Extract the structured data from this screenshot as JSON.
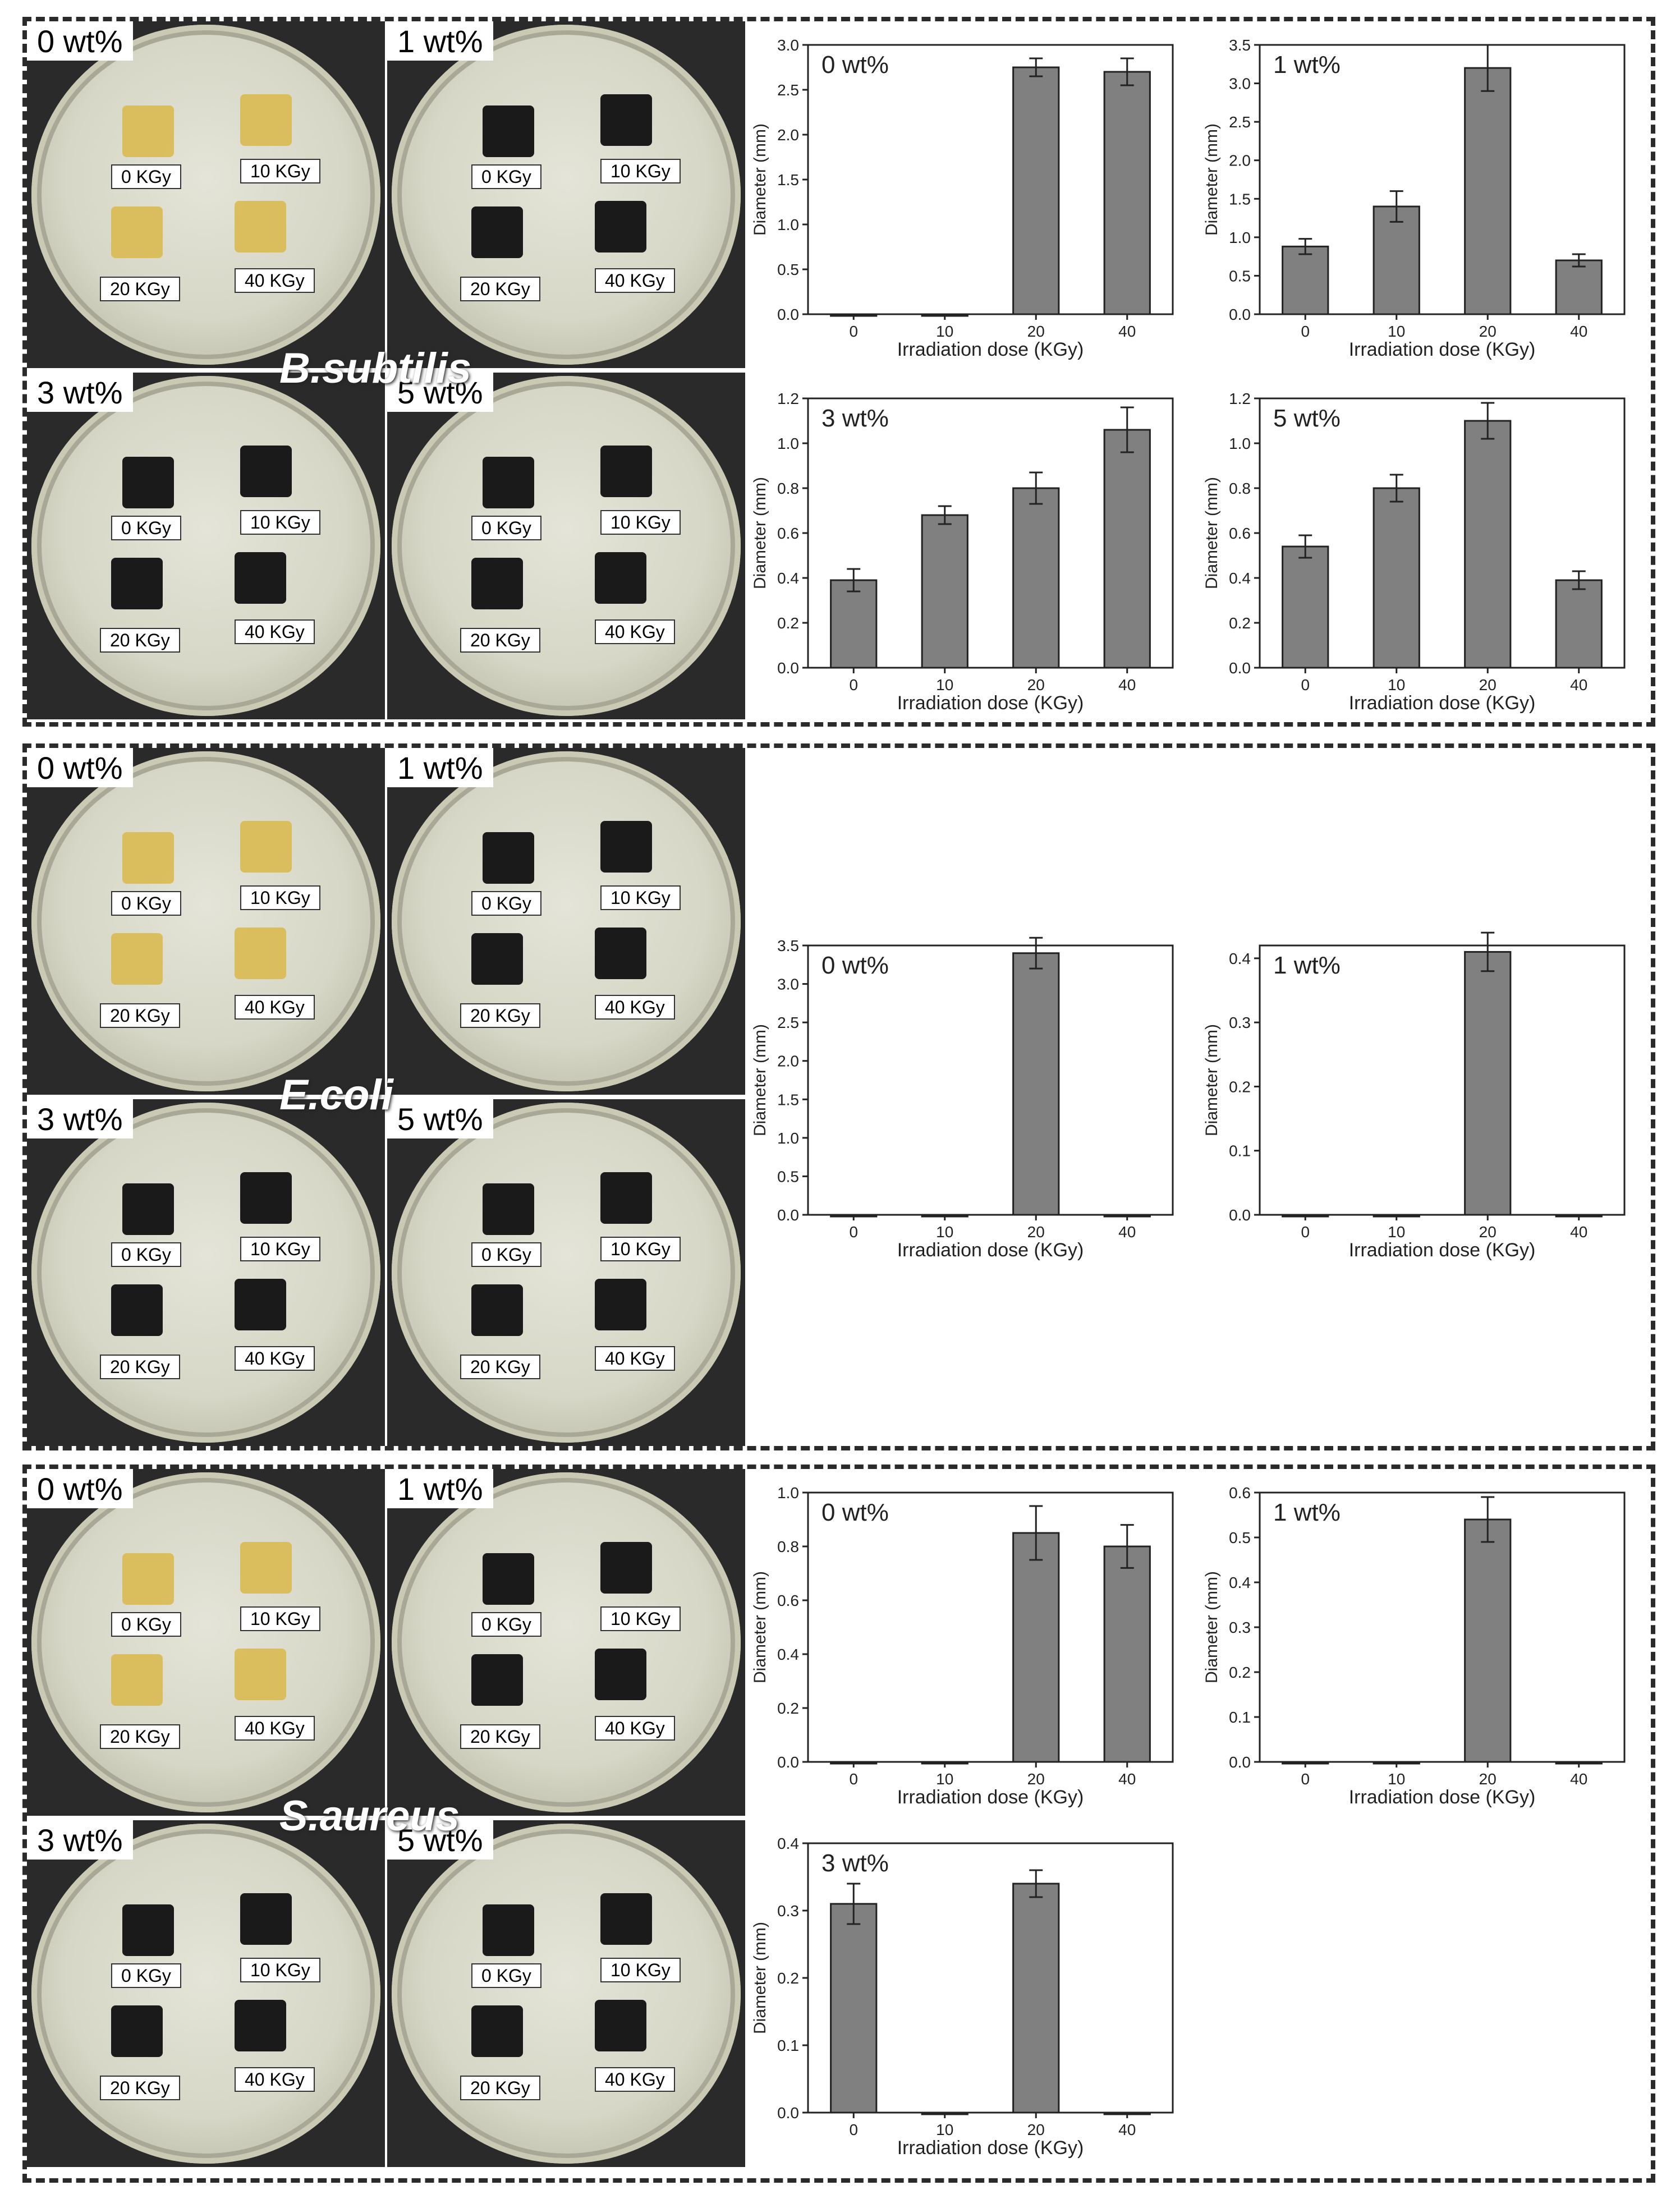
{
  "sections": [
    {
      "species": "B.subtilis",
      "photos": [
        {
          "label": "0 wt%",
          "tint": "light",
          "doses": [
            "0 KGy",
            "10 KGy",
            "20 KGy",
            "40 KGy"
          ]
        },
        {
          "label": "1 wt%",
          "tint": "dark",
          "doses": [
            "0 KGy",
            "10 KGy",
            "20 KGy",
            "40 KGy"
          ]
        },
        {
          "label": "3 wt%",
          "tint": "dark",
          "doses": [
            "0 KGy",
            "10 KGy",
            "20 KGy",
            "40 KGy"
          ]
        },
        {
          "label": "5 wt%",
          "tint": "dark",
          "doses": [
            "0 KGy",
            "10 KGy",
            "20 KGy",
            "40 KGy"
          ]
        }
      ]
    },
    {
      "species": "E.coli",
      "photos": [
        {
          "label": "0 wt%",
          "tint": "light",
          "doses": [
            "0 KGy",
            "10 KGy",
            "20 KGy",
            "40 KGy"
          ]
        },
        {
          "label": "1 wt%",
          "tint": "dark",
          "doses": [
            "0 KGy",
            "10 KGy",
            "20 KGy",
            "40 KGy"
          ]
        },
        {
          "label": "3 wt%",
          "tint": "dark",
          "doses": [
            "0 KGy",
            "10 KGy",
            "20 KGy",
            "40 KGy"
          ]
        },
        {
          "label": "5 wt%",
          "tint": "dark",
          "doses": [
            "0 KGy",
            "10 KGy",
            "20 KGy",
            "40 KGy"
          ]
        }
      ]
    },
    {
      "species": "S.aureus",
      "photos": [
        {
          "label": "0 wt%",
          "tint": "light",
          "doses": [
            "0 KGy",
            "10 KGy",
            "20 KGy",
            "40 KGy"
          ]
        },
        {
          "label": "1 wt%",
          "tint": "dark",
          "doses": [
            "0 KGy",
            "10 KGy",
            "20 KGy",
            "40 KGy"
          ]
        },
        {
          "label": "3 wt%",
          "tint": "dark",
          "doses": [
            "0 KGy",
            "10 KGy",
            "20 KGy",
            "40 KGy"
          ]
        },
        {
          "label": "5 wt%",
          "tint": "dark",
          "doses": [
            "0 KGy",
            "10 KGy",
            "20 KGy",
            "40 KGy"
          ]
        }
      ]
    }
  ],
  "colors": {
    "bar": "#808080",
    "light_sample": "#d9b84a",
    "dark_sample": "#1a1a1a"
  },
  "chart_data": [
    {
      "type": "bar",
      "title": "0 wt%",
      "categories": [
        "0",
        "10",
        "20",
        "40"
      ],
      "values": [
        0,
        0,
        2.75,
        2.7
      ],
      "errors": [
        0,
        0,
        0.1,
        0.15
      ],
      "xlabel": "Irradiation dose (KGy)",
      "ylabel": "Diameter (mm)",
      "ylim": [
        0,
        3.0
      ],
      "yticks": [
        "0.0",
        "0.5",
        "1.0",
        "1.5",
        "2.0",
        "2.5",
        "3.0"
      ]
    },
    {
      "type": "bar",
      "title": "1 wt%",
      "categories": [
        "0",
        "10",
        "20",
        "40"
      ],
      "values": [
        0.88,
        1.4,
        3.2,
        0.7
      ],
      "errors": [
        0.1,
        0.2,
        0.3,
        0.08
      ],
      "xlabel": "Irradiation dose (KGy)",
      "ylabel": "Diameter (mm)",
      "ylim": [
        0,
        3.5
      ],
      "yticks": [
        "0.0",
        "0.5",
        "1.0",
        "1.5",
        "2.0",
        "2.5",
        "3.0",
        "3.5"
      ]
    },
    {
      "type": "bar",
      "title": "3 wt%",
      "categories": [
        "0",
        "10",
        "20",
        "40"
      ],
      "values": [
        0.39,
        0.68,
        0.8,
        1.06
      ],
      "errors": [
        0.05,
        0.04,
        0.07,
        0.1
      ],
      "xlabel": "Irradiation dose (KGy)",
      "ylabel": "Diameter (mm)",
      "ylim": [
        0,
        1.2
      ],
      "yticks": [
        "0.0",
        "0.2",
        "0.4",
        "0.6",
        "0.8",
        "1.0",
        "1.2"
      ]
    },
    {
      "type": "bar",
      "title": "5 wt%",
      "categories": [
        "0",
        "10",
        "20",
        "40"
      ],
      "values": [
        0.54,
        0.8,
        1.1,
        0.39
      ],
      "errors": [
        0.05,
        0.06,
        0.08,
        0.04
      ],
      "xlabel": "Irradiation dose (KGy)",
      "ylabel": "Diameter (mm)",
      "ylim": [
        0,
        1.2
      ],
      "yticks": [
        "0.0",
        "0.2",
        "0.4",
        "0.6",
        "0.8",
        "1.0",
        "1.2"
      ]
    },
    {
      "type": "bar",
      "title": "0 wt%",
      "categories": [
        "0",
        "10",
        "20",
        "40"
      ],
      "values": [
        0,
        0,
        3.4,
        0
      ],
      "errors": [
        0,
        0,
        0.2,
        0
      ],
      "xlabel": "Irradiation dose (KGy)",
      "ylabel": "Diameter (mm)",
      "ylim": [
        0,
        3.5
      ],
      "yticks": [
        "0.0",
        "0.5",
        "1.0",
        "1.5",
        "2.0",
        "2.5",
        "3.0",
        "3.5"
      ]
    },
    {
      "type": "bar",
      "title": "1 wt%",
      "categories": [
        "0",
        "10",
        "20",
        "40"
      ],
      "values": [
        0,
        0,
        0.41,
        0
      ],
      "errors": [
        0,
        0,
        0.03,
        0
      ],
      "xlabel": "Irradiation dose (KGy)",
      "ylabel": "Diameter (mm)",
      "ylim": [
        0,
        0.42
      ],
      "yticks": [
        "0.0",
        "0.1",
        "0.2",
        "0.3",
        "0.4"
      ]
    },
    {
      "type": "bar",
      "title": "0 wt%",
      "categories": [
        "0",
        "10",
        "20",
        "40"
      ],
      "values": [
        0,
        0,
        0.85,
        0.8
      ],
      "errors": [
        0,
        0,
        0.1,
        0.08
      ],
      "xlabel": "Irradiation dose (KGy)",
      "ylabel": "Diameter (mm)",
      "ylim": [
        0,
        1.0
      ],
      "yticks": [
        "0.0",
        "0.2",
        "0.4",
        "0.6",
        "0.8",
        "1.0"
      ]
    },
    {
      "type": "bar",
      "title": "1 wt%",
      "categories": [
        "0",
        "10",
        "20",
        "40"
      ],
      "values": [
        0,
        0,
        0.54,
        0
      ],
      "errors": [
        0,
        0,
        0.05,
        0
      ],
      "xlabel": "Irradiation dose (KGy)",
      "ylabel": "Diameter (mm)",
      "ylim": [
        0,
        0.6
      ],
      "yticks": [
        "0.0",
        "0.1",
        "0.2",
        "0.3",
        "0.4",
        "0.5",
        "0.6"
      ]
    },
    {
      "type": "bar",
      "title": "3 wt%",
      "categories": [
        "0",
        "10",
        "20",
        "40"
      ],
      "values": [
        0.31,
        0,
        0.34,
        0
      ],
      "errors": [
        0.03,
        0,
        0.02,
        0
      ],
      "xlabel": "Irradiation dose (KGy)",
      "ylabel": "Diameter (mm)",
      "ylim": [
        0,
        0.4
      ],
      "yticks": [
        "0.0",
        "0.1",
        "0.2",
        "0.3",
        "0.4"
      ]
    }
  ]
}
